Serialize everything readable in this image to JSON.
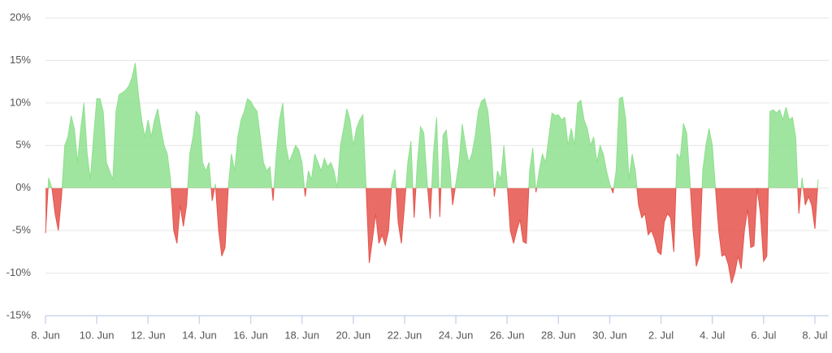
{
  "chart_data": {
    "type": "area",
    "x": [
      0,
      0.125,
      0.25,
      0.375,
      0.5,
      0.625,
      0.75,
      0.875,
      1,
      1.125,
      1.25,
      1.375,
      1.5,
      1.625,
      1.75,
      1.875,
      2,
      2.125,
      2.25,
      2.375,
      2.5,
      2.625,
      2.75,
      2.875,
      3,
      3.125,
      3.25,
      3.375,
      3.5,
      3.625,
      3.75,
      3.875,
      4,
      4.125,
      4.25,
      4.375,
      4.5,
      4.625,
      4.75,
      4.875,
      5,
      5.125,
      5.25,
      5.375,
      5.5,
      5.625,
      5.75,
      5.875,
      6,
      6.125,
      6.25,
      6.375,
      6.5,
      6.625,
      6.75,
      6.875,
      7,
      7.125,
      7.25,
      7.375,
      7.5,
      7.625,
      7.75,
      7.875,
      8,
      8.125,
      8.25,
      8.375,
      8.5,
      8.625,
      8.75,
      8.875,
      9,
      9.125,
      9.25,
      9.375,
      9.5,
      9.625,
      9.75,
      9.875,
      10,
      10.125,
      10.25,
      10.375,
      10.5,
      10.625,
      10.75,
      10.875,
      11,
      11.125,
      11.25,
      11.375,
      11.5,
      11.625,
      11.75,
      11.875,
      12,
      12.125,
      12.25,
      12.375,
      12.5,
      12.625,
      12.75,
      12.875,
      13,
      13.125,
      13.25,
      13.375,
      13.5,
      13.625,
      13.75,
      13.875,
      14,
      14.125,
      14.25,
      14.375,
      14.5,
      14.625,
      14.75,
      14.875,
      15,
      15.125,
      15.25,
      15.375,
      15.5,
      15.625,
      15.75,
      15.875,
      16,
      16.125,
      16.25,
      16.375,
      16.5,
      16.625,
      16.75,
      16.875,
      17,
      17.125,
      17.25,
      17.375,
      17.5,
      17.625,
      17.75,
      17.875,
      18,
      18.125,
      18.25,
      18.375,
      18.5,
      18.625,
      18.75,
      18.875,
      19,
      19.125,
      19.25,
      19.375,
      19.5,
      19.625,
      19.75,
      19.875,
      20,
      20.125,
      20.25,
      20.375,
      20.5,
      20.625,
      20.75,
      20.875,
      21,
      21.125,
      21.25,
      21.375,
      21.5,
      21.625,
      21.75,
      21.875,
      22,
      22.125,
      22.25,
      22.375,
      22.5,
      22.625,
      22.75,
      22.875,
      23,
      23.125,
      23.25,
      23.375,
      23.5,
      23.625,
      23.75,
      23.875,
      24,
      24.125,
      24.25,
      24.375,
      24.5,
      24.625,
      24.75,
      24.875,
      25,
      25.125,
      25.25,
      25.375,
      25.5,
      25.625,
      25.75,
      25.875,
      26,
      26.125,
      26.25,
      26.375,
      26.5,
      26.625,
      26.75,
      26.875,
      27,
      27.125,
      27.25,
      27.375,
      27.5,
      27.625,
      27.75,
      27.875,
      28,
      28.125,
      28.25,
      28.375,
      28.5,
      28.625,
      28.75,
      28.875,
      29,
      29.125,
      29.25,
      29.375,
      29.5,
      29.625,
      29.75,
      29.875,
      30,
      30.125
    ],
    "series": [
      {
        "color": "#8ee08e",
        "negative_color": "#e5534b",
        "values": [
          -5.3,
          1.2,
          0,
          -3,
          -5,
          -1,
          5,
          6,
          8.5,
          7,
          3,
          7,
          10,
          4,
          1,
          6,
          10.5,
          10.5,
          9,
          3,
          2,
          1,
          9,
          11,
          11.2,
          11.5,
          12,
          13,
          14.7,
          11,
          8,
          6,
          8,
          6,
          8,
          9.3,
          7,
          5,
          4,
          1,
          -5,
          -6.5,
          -2,
          -4.5,
          -2,
          4,
          6,
          9,
          8.5,
          3,
          2,
          3,
          -1.5,
          0.5,
          -5,
          -8,
          -7,
          0,
          4,
          2,
          6,
          8,
          9,
          10.5,
          10.2,
          9.5,
          9,
          6,
          3,
          2,
          2.5,
          -1.5,
          4,
          8,
          10,
          5,
          3,
          4,
          5,
          4.5,
          3,
          -1,
          2,
          1,
          4,
          3,
          2,
          3.5,
          2.5,
          3,
          2,
          0,
          5,
          7,
          9.3,
          8,
          5,
          7,
          8,
          8.6,
          0,
          -8.8,
          -6,
          -3,
          -6.5,
          -5.5,
          -6.7,
          -5,
          0.5,
          2.2,
          -4,
          -6.5,
          -2,
          3,
          5.5,
          -3.5,
          3,
          7.2,
          6.5,
          1,
          -3.6,
          4,
          8.3,
          -3.4,
          6.2,
          6.8,
          3,
          -2,
          0.5,
          3,
          7.5,
          5,
          3,
          4,
          6,
          9,
          10.2,
          10.5,
          9,
          5,
          -1,
          2,
          1,
          5,
          0.5,
          -5,
          -6.5,
          -5,
          -3.7,
          -6.3,
          -6.5,
          2,
          4.7,
          -0.5,
          2,
          4,
          3,
          6,
          8.8,
          8.5,
          8.6,
          8,
          8.3,
          5,
          7,
          5,
          10,
          10.3,
          8,
          7,
          5,
          6,
          3,
          5,
          4,
          2,
          0.5,
          -0.6,
          2,
          10.5,
          10.7,
          8,
          1,
          4,
          2,
          -2,
          -3.5,
          -3,
          -5.5,
          -5,
          -6,
          -7.5,
          -7.8,
          -4,
          -3,
          -3.5,
          -7.5,
          4,
          3.5,
          7.6,
          6.5,
          1,
          -5,
          -9.2,
          -8,
          2,
          5,
          7,
          5,
          0,
          -5,
          -8,
          -7.8,
          -9,
          -11.2,
          -10,
          -8,
          -9.5,
          -5,
          -2.5,
          -7,
          -6.8,
          0,
          -3,
          -8.6,
          -8,
          9,
          9.2,
          8.8,
          9.2,
          8,
          9.5,
          8,
          8.3,
          6,
          -3,
          1.2,
          -2,
          -1,
          -2,
          -4.8,
          1
        ]
      }
    ],
    "xlim": [
      0,
      30.54
    ],
    "xticks": [
      {
        "value": 0,
        "label": "8. Jun"
      },
      {
        "value": 2,
        "label": "10. Jun"
      },
      {
        "value": 4,
        "label": "12. Jun"
      },
      {
        "value": 6,
        "label": "14. Jun"
      },
      {
        "value": 8,
        "label": "16. Jun"
      },
      {
        "value": 10,
        "label": "18. Jun"
      },
      {
        "value": 12,
        "label": "20. Jun"
      },
      {
        "value": 14,
        "label": "22. Jun"
      },
      {
        "value": 16,
        "label": "24. Jun"
      },
      {
        "value": 18,
        "label": "26. Jun"
      },
      {
        "value": 20,
        "label": "28. Jun"
      },
      {
        "value": 22,
        "label": "30. Jun"
      },
      {
        "value": 24,
        "label": "2. Jul"
      },
      {
        "value": 26,
        "label": "4. Jul"
      },
      {
        "value": 28,
        "label": "6. Jul"
      },
      {
        "value": 30,
        "label": "8. Jul"
      }
    ],
    "ylim": [
      -15,
      20
    ],
    "yticks": [
      {
        "value": -15,
        "label": "-15%"
      },
      {
        "value": -10,
        "label": "-10%"
      },
      {
        "value": -5,
        "label": "-5%"
      },
      {
        "value": 0,
        "label": "0%"
      },
      {
        "value": 5,
        "label": "5%"
      },
      {
        "value": 10,
        "label": "10%"
      },
      {
        "value": 15,
        "label": "15%"
      },
      {
        "value": 20,
        "label": "20%"
      }
    ],
    "grid": true
  }
}
